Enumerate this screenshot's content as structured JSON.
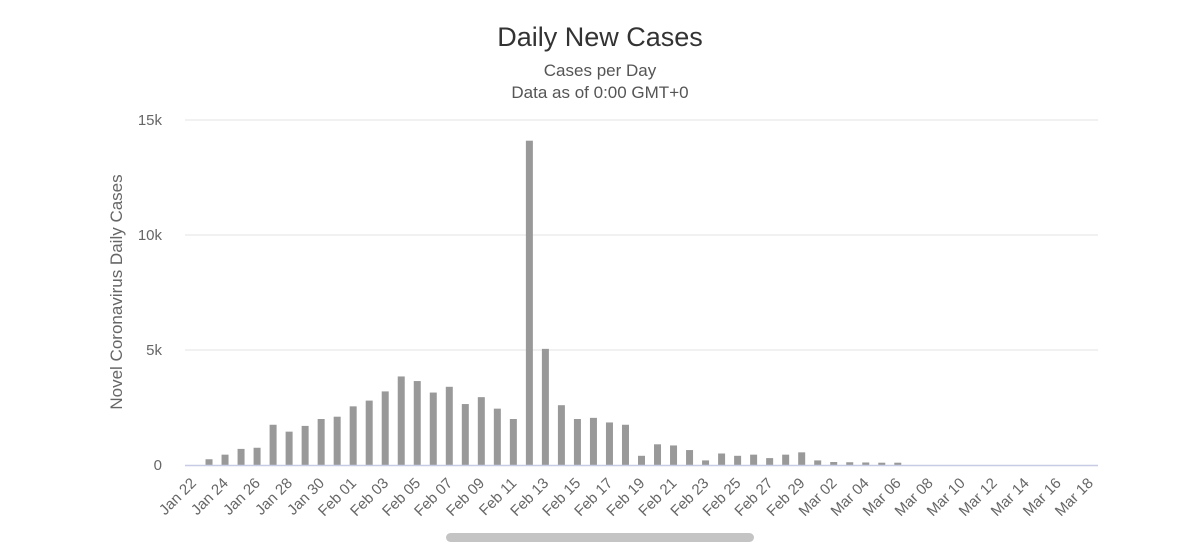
{
  "colors": {
    "bar": "#999999",
    "scrollbar": "#c4c4c4",
    "background": "#ffffff"
  },
  "chart_data": {
    "type": "bar",
    "title": "Daily New Cases",
    "subtitle": "Cases per Day",
    "subtitle2": "Data as of 0:00 GMT+0",
    "ylabel": "Novel Coronavirus Daily Cases",
    "xlabel": "",
    "ylim": [
      0,
      15000
    ],
    "yticks": [
      {
        "value": 0,
        "label": "0"
      },
      {
        "value": 5000,
        "label": "5k"
      },
      {
        "value": 10000,
        "label": "10k"
      },
      {
        "value": 15000,
        "label": "15k"
      }
    ],
    "grid": true,
    "legend": "none",
    "categories": [
      "Jan 22",
      "Jan 23",
      "Jan 24",
      "Jan 25",
      "Jan 26",
      "Jan 27",
      "Jan 28",
      "Jan 29",
      "Jan 30",
      "Jan 31",
      "Feb 01",
      "Feb 02",
      "Feb 03",
      "Feb 04",
      "Feb 05",
      "Feb 06",
      "Feb 07",
      "Feb 08",
      "Feb 09",
      "Feb 10",
      "Feb 11",
      "Feb 12",
      "Feb 13",
      "Feb 14",
      "Feb 15",
      "Feb 16",
      "Feb 17",
      "Feb 18",
      "Feb 19",
      "Feb 20",
      "Feb 21",
      "Feb 22",
      "Feb 23",
      "Feb 24",
      "Feb 25",
      "Feb 26",
      "Feb 27",
      "Feb 28",
      "Feb 29",
      "Mar 01",
      "Mar 02",
      "Mar 03",
      "Mar 04",
      "Mar 05",
      "Mar 06",
      "Mar 07",
      "Mar 08",
      "Mar 09",
      "Mar 10",
      "Mar 11",
      "Mar 12",
      "Mar 13",
      "Mar 14",
      "Mar 15",
      "Mar 16",
      "Mar 17",
      "Mar 18"
    ],
    "tick_labels": [
      "Jan 22",
      "Jan 24",
      "Jan 26",
      "Jan 28",
      "Jan 30",
      "Feb 01",
      "Feb 03",
      "Feb 05",
      "Feb 07",
      "Feb 09",
      "Feb 11",
      "Feb 13",
      "Feb 15",
      "Feb 17",
      "Feb 19",
      "Feb 21",
      "Feb 23",
      "Feb 25",
      "Feb 27",
      "Feb 29",
      "Mar 02",
      "Mar 04",
      "Mar 06",
      "Mar 08",
      "Mar 10",
      "Mar 12",
      "Mar 14",
      "Mar 16",
      "Mar 18"
    ],
    "values": [
      0,
      250,
      450,
      700,
      750,
      1750,
      1450,
      1700,
      2000,
      2100,
      2550,
      2800,
      3200,
      3850,
      3650,
      3150,
      3400,
      2650,
      2950,
      2450,
      2000,
      14100,
      5050,
      2600,
      2000,
      2050,
      1850,
      1750,
      400,
      900,
      850,
      650,
      200,
      500,
      400,
      450,
      300,
      450,
      550,
      200,
      130,
      120,
      110,
      100,
      100,
      0,
      0,
      0,
      0,
      0,
      0,
      0,
      0,
      0,
      0,
      0,
      0
    ]
  }
}
